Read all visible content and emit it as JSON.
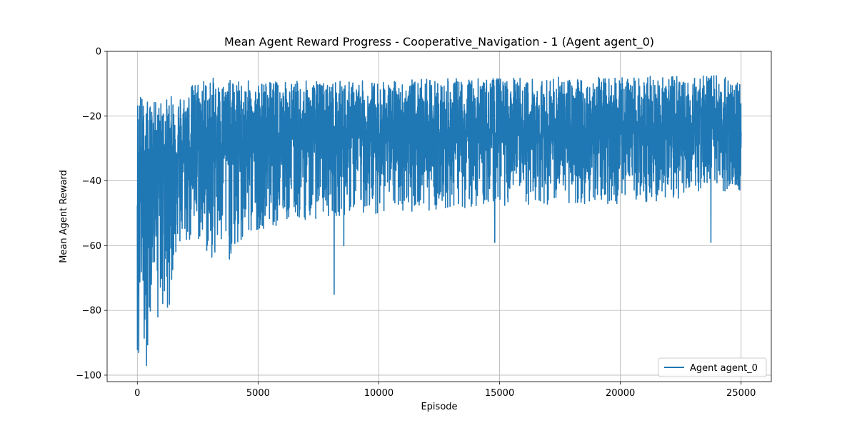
{
  "chart_data": {
    "type": "line",
    "title": "Mean Agent Reward Progress - Cooperative_Navigation - 1 (Agent agent_0)",
    "xlabel": "Episode",
    "ylabel": "Mean Agent Reward",
    "xlim": [
      -1250,
      26250
    ],
    "ylim": [
      -102,
      0
    ],
    "xticks": [
      0,
      5000,
      10000,
      15000,
      20000,
      25000
    ],
    "yticks": [
      0,
      -20,
      -40,
      -60,
      -80,
      -100
    ],
    "grid": true,
    "legend_position": "lower-right",
    "series": [
      {
        "name": "Agent agent_0",
        "color": "#1f77b4",
        "x_range": [
          0,
          25000
        ],
        "envelope": {
          "x": [
            0,
            100,
            200,
            300,
            400,
            600,
            800,
            1000,
            1300,
            1600,
            2000,
            2500,
            3000,
            4000,
            5000,
            8000,
            10000,
            15000,
            20000,
            23800,
            25000
          ],
          "upper": [
            -11,
            -11,
            -13,
            -16,
            -15,
            -16,
            -15,
            -15,
            -14,
            -13,
            -12,
            -8,
            -8,
            -9,
            -9,
            -9,
            -9,
            -8,
            -8,
            -7,
            -9
          ],
          "lower": [
            -93,
            -85,
            -78,
            -91,
            -97,
            -74,
            -67,
            -82,
            -80,
            -64,
            -61,
            -60,
            -65,
            -65,
            -55,
            -51,
            -50,
            -48,
            -47,
            -46,
            -43
          ],
          "central": [
            -44,
            -41,
            -40,
            -39,
            -38,
            -36,
            -35,
            -34,
            -33,
            -32,
            -30,
            -29,
            -29,
            -28,
            -27,
            -26,
            -26,
            -26,
            -25,
            -25,
            -25
          ]
        },
        "notable_points": [
          {
            "x": 8150,
            "y": -75
          },
          {
            "x": 8550,
            "y": -60
          },
          {
            "x": 14800,
            "y": -59
          },
          {
            "x": 23750,
            "y": -59
          },
          {
            "x": 380,
            "y": -97
          },
          {
            "x": 60,
            "y": -93
          },
          {
            "x": 850,
            "y": -82
          },
          {
            "x": 1250,
            "y": -79
          }
        ]
      }
    ]
  }
}
